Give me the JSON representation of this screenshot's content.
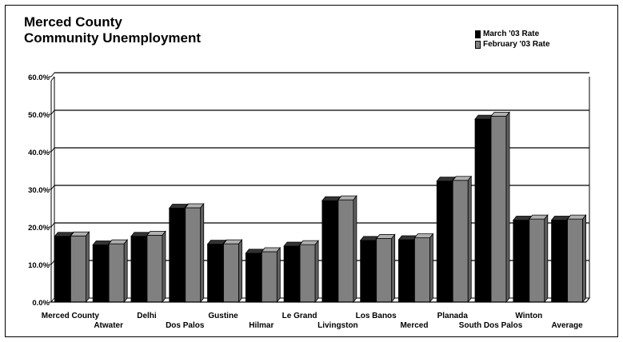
{
  "chart_data": {
    "type": "bar",
    "title_line1": "Merced County",
    "title_line2": "Community Unemployment",
    "categories": [
      "Merced County",
      "Atwater",
      "Delhi",
      "Dos Palos",
      "Gustine",
      "Hilmar",
      "Le Grand",
      "Livingston",
      "Los Banos",
      "Merced",
      "Planada",
      "South Dos Palos",
      "Winton",
      "Average"
    ],
    "series": [
      {
        "name": "March '03 Rate",
        "color": "#000000",
        "values": [
          17.5,
          15.2,
          17.5,
          25.0,
          15.4,
          13.0,
          14.9,
          27.0,
          16.4,
          16.6,
          32.2,
          48.7,
          21.8,
          21.8
        ]
      },
      {
        "name": "February '03 Rate",
        "color": "#808080",
        "values": [
          17.6,
          15.5,
          17.8,
          25.1,
          15.5,
          13.4,
          15.3,
          27.2,
          16.9,
          17.1,
          32.4,
          49.5,
          22.1,
          22.1
        ]
      }
    ],
    "y_ticks": [
      "0.0%",
      "10.0%",
      "20.0%",
      "30.0%",
      "40.0%",
      "50.0%",
      "60.0%"
    ],
    "ylim": [
      0,
      60
    ],
    "grid": true,
    "legend_position": "top-right"
  }
}
